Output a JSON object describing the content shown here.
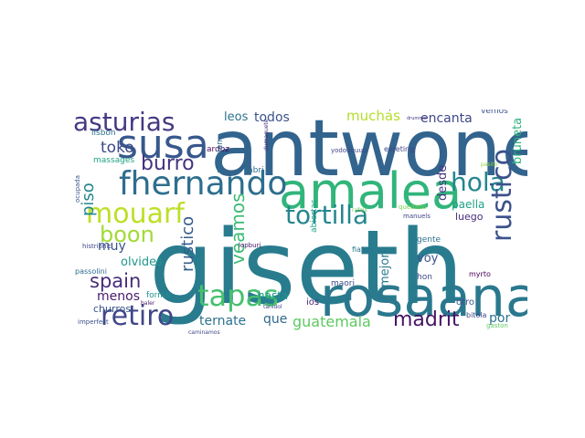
{
  "words": [
    {
      "text": "giseth",
      "color": "#287c8e"
    },
    {
      "text": "antwone",
      "color": "#32648e"
    },
    {
      "text": "rosaana",
      "color": "#2a788e"
    },
    {
      "text": "amalea",
      "color": "#31b57b"
    },
    {
      "text": "susa",
      "color": "#38588c"
    },
    {
      "text": "fhernando",
      "color": "#2e6e8e"
    },
    {
      "text": "asturias",
      "color": "#443983"
    },
    {
      "text": "tapas",
      "color": "#46c06f"
    },
    {
      "text": "mouarf",
      "color": "#bddf26"
    },
    {
      "text": "tortilla",
      "color": "#24868e"
    },
    {
      "text": "retiro",
      "color": "#404688"
    },
    {
      "text": "boon",
      "color": "#a2da37"
    },
    {
      "text": "hola",
      "color": "#24868e"
    },
    {
      "text": "rustico",
      "color": "#3b528b"
    },
    {
      "text": "rustico",
      "color": "#365d8d"
    },
    {
      "text": "spain",
      "color": "#472c7a"
    },
    {
      "text": "burro",
      "color": "#46337f"
    },
    {
      "text": "veamos",
      "color": "#3dbc74"
    },
    {
      "text": "madrit",
      "color": "#471365"
    },
    {
      "text": "guatemala",
      "color": "#5ec962"
    },
    {
      "text": "ternate",
      "color": "#2c728e"
    },
    {
      "text": "toko",
      "color": "#3e4989"
    },
    {
      "text": "piso",
      "color": "#24868e"
    },
    {
      "text": "todos",
      "color": "#3b528b"
    },
    {
      "text": "muchas",
      "color": "#b5de2b"
    },
    {
      "text": "encanta",
      "color": "#3f4788"
    },
    {
      "text": "leos",
      "color": "#2c728e"
    },
    {
      "text": "muy",
      "color": "#3b528b"
    },
    {
      "text": "olvides",
      "color": "#1f978b"
    },
    {
      "text": "menos",
      "color": "#481a6c"
    },
    {
      "text": "que",
      "color": "#31688e"
    },
    {
      "text": "por",
      "color": "#2c728e"
    },
    {
      "text": "bruneta",
      "color": "#2db27d"
    },
    {
      "text": "desde",
      "color": "#453781"
    },
    {
      "text": "paella",
      "color": "#1fa088"
    },
    {
      "text": "luego",
      "color": "#472d7b"
    },
    {
      "text": "mejor",
      "color": "#2a788e"
    },
    {
      "text": "voy",
      "color": "#3b528b"
    },
    {
      "text": "hasta",
      "color": "#1f948c"
    },
    {
      "text": "churros",
      "color": "#39568c"
    },
    {
      "text": "massages",
      "color": "#20a386"
    },
    {
      "text": "lisbon",
      "color": "#2c728e"
    },
    {
      "text": "forms",
      "color": "#21918c"
    },
    {
      "text": "passolini",
      "color": "#2f6c8e"
    },
    {
      "text": "histrionic",
      "color": "#3f4788"
    },
    {
      "text": "ardoz",
      "color": "#46085c"
    },
    {
      "text": "fabri",
      "color": "#2d708e"
    },
    {
      "text": "asturian",
      "color": "#2e6f8e"
    },
    {
      "text": "gente",
      "color": "#2c728e"
    },
    {
      "text": "hon",
      "color": "#3e4a89"
    },
    {
      "text": "ios",
      "color": "#482475"
    },
    {
      "text": "otro",
      "color": "#3b528b"
    },
    {
      "text": "bitola",
      "color": "#404688"
    },
    {
      "text": "maori",
      "color": "#3e4a89"
    },
    {
      "text": "abiertas",
      "color": "#20a486"
    },
    {
      "text": "fiatmates",
      "color": "#2a788e"
    },
    {
      "text": "evreting",
      "color": "#3f4788"
    },
    {
      "text": "yodouuuuu",
      "color": "#404588"
    },
    {
      "text": "vemos",
      "color": "#3b528b"
    },
    {
      "text": "pasito",
      "color": "#90d743"
    },
    {
      "text": "occupiers",
      "color": "#482878"
    },
    {
      "text": "quedado",
      "color": "#7ad151"
    },
    {
      "text": "rafals",
      "color": "#6ece58"
    },
    {
      "text": "manuels",
      "color": "#414487"
    },
    {
      "text": "myrto",
      "color": "#440154"
    },
    {
      "text": "gaston",
      "color": "#5ec962"
    },
    {
      "text": "caminamos",
      "color": "#3e4a89"
    },
    {
      "text": "imperfect",
      "color": "#3b528b"
    },
    {
      "text": "ocupada",
      "color": "#39568c"
    },
    {
      "text": "baler",
      "color": "#481f70"
    },
    {
      "text": "drummer",
      "color": "#46327e"
    },
    {
      "text": "tanidol",
      "color": "#3f4788"
    },
    {
      "text": "lopburi",
      "color": "#481769"
    },
    {
      "text": "dumaguete",
      "color": "#46307e"
    }
  ]
}
